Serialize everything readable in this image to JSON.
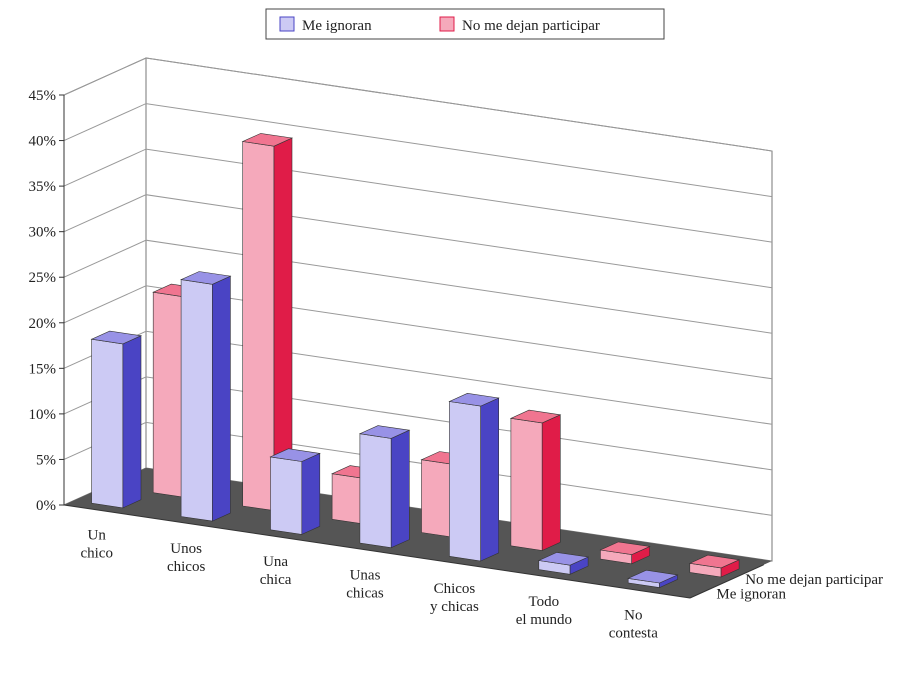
{
  "chart_data": {
    "type": "bar",
    "style": "3d-clustered-column",
    "title": "",
    "xlabel": "",
    "ylabel": "",
    "categories": [
      [
        "Un",
        "chico"
      ],
      [
        "Unos",
        "chicos"
      ],
      [
        "Una",
        "chica"
      ],
      [
        "Unas",
        "chicas"
      ],
      [
        "Chicos",
        "y chicas"
      ],
      [
        "Todo",
        "el mundo"
      ],
      [
        "No",
        "contesta"
      ]
    ],
    "series": [
      {
        "name": "Me ignoran",
        "values": [
          18,
          26,
          8,
          12,
          17,
          1,
          0.5
        ],
        "color_front": "#cccaf4",
        "color_side": "#4a44c4",
        "color_top": "#9892e6"
      },
      {
        "name": "No me dejan participar",
        "values": [
          22,
          40,
          5,
          8,
          14,
          1,
          1
        ],
        "color_front": "#f5a9bb",
        "color_side": "#e01c48",
        "color_top": "#f07590"
      }
    ],
    "depth_labels": [
      "No me dejan participar",
      "Me ignoran"
    ],
    "ylim": [
      0,
      45
    ],
    "yticks": [
      "0%",
      "5%",
      "10%",
      "15%",
      "20%",
      "25%",
      "30%",
      "35%",
      "40%",
      "45%"
    ],
    "grid": true,
    "legend": "top-center",
    "floor_color": "#555555"
  }
}
